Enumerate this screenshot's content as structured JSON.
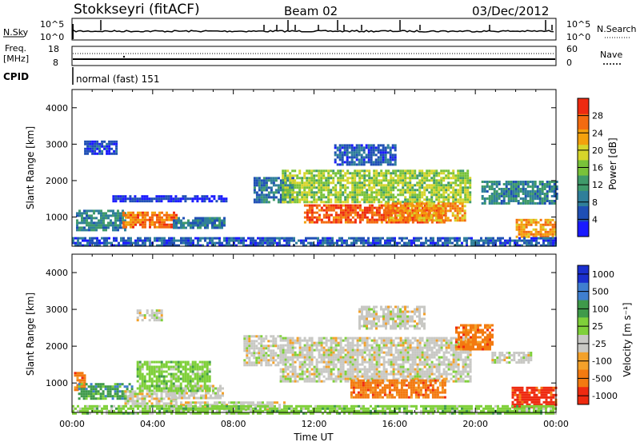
{
  "header": {
    "title": "Stokkseyri (fitACF)",
    "beam": "Beam 02",
    "date": "03/Dec/2012"
  },
  "strip_nsky": {
    "label": "N.Sky",
    "left_ticks": [
      "10^5",
      "10^0"
    ],
    "right_ticks": [
      "10^5",
      "10^0"
    ],
    "right_label": "N.Search"
  },
  "strip_freq": {
    "label_line1": "Freq.",
    "label_line2": "[MHz]",
    "left_ticks": [
      "18",
      "8"
    ],
    "right_ticks": [
      "60",
      "0"
    ],
    "right_label": "Nave"
  },
  "strip_cpid": {
    "label": "CPID",
    "mode": "normal (fast) 151"
  },
  "x_axis": {
    "label": "Time UT",
    "ticks": [
      "00:00",
      "04:00",
      "08:00",
      "12:00",
      "16:00",
      "20:00",
      "00:00"
    ]
  },
  "colors": {
    "power": [
      "#1a1aff",
      "#1f4fb5",
      "#2f7f9a",
      "#3f9a6a",
      "#79c23a",
      "#d6d52b",
      "#f3a10d",
      "#f36b10",
      "#ee2a10"
    ],
    "velocity": [
      "#1a2fcf",
      "#3f7fd0",
      "#3f9a4a",
      "#7fd03a",
      "#c8c8c4",
      "#f3a12a",
      "#f37a10",
      "#ee2a10"
    ]
  },
  "chart_data": [
    {
      "type": "heatmap",
      "name": "power",
      "ylabel": "Slant Range [km]",
      "ylim": [
        200,
        4500
      ],
      "y_ticks": [
        "1000",
        "2000",
        "3000",
        "4000"
      ],
      "xlim_hours": [
        0,
        24
      ],
      "colorbar": {
        "label": "Power [dB]",
        "range": [
          0,
          32
        ],
        "ticks": [
          "4",
          "8",
          "12",
          "16",
          "20",
          "24",
          "28"
        ]
      },
      "regions": [
        {
          "t0": 0.2,
          "t1": 2.6,
          "r0": 650,
          "r1": 1200,
          "level": 10
        },
        {
          "t0": 2.5,
          "t1": 5.2,
          "r0": 700,
          "r1": 1150,
          "level": 26
        },
        {
          "t0": 5.0,
          "t1": 7.5,
          "r0": 700,
          "r1": 1000,
          "level": 9
        },
        {
          "t0": 2.0,
          "t1": 7.7,
          "r0": 1450,
          "r1": 1600,
          "level": 3
        },
        {
          "t0": 0.6,
          "t1": 2.2,
          "r0": 2750,
          "r1": 3100,
          "level": 5
        },
        {
          "t0": 9.0,
          "t1": 11.0,
          "r0": 1400,
          "r1": 2100,
          "level": 8
        },
        {
          "t0": 10.4,
          "t1": 19.8,
          "r0": 1400,
          "r1": 2300,
          "level": 17
        },
        {
          "t0": 11.5,
          "t1": 18.5,
          "r0": 850,
          "r1": 1350,
          "level": 28
        },
        {
          "t0": 15.5,
          "t1": 19.5,
          "r0": 900,
          "r1": 1400,
          "level": 24
        },
        {
          "t0": 13.0,
          "t1": 16.0,
          "r0": 2450,
          "r1": 3000,
          "level": 6
        },
        {
          "t0": 20.3,
          "t1": 24.0,
          "r0": 1350,
          "r1": 2000,
          "level": 10
        },
        {
          "t0": 22.0,
          "t1": 24.0,
          "r0": 450,
          "r1": 950,
          "level": 24
        },
        {
          "t0": 0.0,
          "t1": 24.0,
          "r0": 200,
          "r1": 450,
          "level": 6
        }
      ]
    },
    {
      "type": "heatmap",
      "name": "velocity",
      "ylabel": "Slant Range [km]",
      "ylim": [
        200,
        4500
      ],
      "y_ticks": [
        "1000",
        "2000",
        "3000",
        "4000"
      ],
      "xlim_hours": [
        0,
        24
      ],
      "colorbar": {
        "label": "Velocity [m s⁻¹]",
        "ticks": [
          "1000",
          "500",
          "100",
          "25",
          "-25",
          "-100",
          "-500",
          "-1000"
        ]
      },
      "regions": [
        {
          "t0": 0.1,
          "t1": 0.6,
          "r0": 800,
          "r1": 1300,
          "class": 6
        },
        {
          "t0": 0.3,
          "t1": 3.0,
          "r0": 600,
          "r1": 1000,
          "class": 2
        },
        {
          "t0": 2.6,
          "t1": 5.2,
          "r0": 400,
          "r1": 800,
          "class": 4
        },
        {
          "t0": 4.8,
          "t1": 7.5,
          "r0": 600,
          "r1": 950,
          "class": 4
        },
        {
          "t0": 3.2,
          "t1": 6.8,
          "r0": 800,
          "r1": 1600,
          "class": 3
        },
        {
          "t0": 3.2,
          "t1": 4.4,
          "r0": 2700,
          "r1": 3000,
          "class": 4
        },
        {
          "t0": 5.0,
          "t1": 10.5,
          "r0": 250,
          "r1": 500,
          "class": 4
        },
        {
          "t0": 8.5,
          "t1": 10.4,
          "r0": 1500,
          "r1": 2300,
          "class": 4
        },
        {
          "t0": 10.3,
          "t1": 19.8,
          "r0": 1050,
          "r1": 2250,
          "class": 4
        },
        {
          "t0": 13.8,
          "t1": 18.5,
          "r0": 600,
          "r1": 1100,
          "class": 6
        },
        {
          "t0": 14.2,
          "t1": 17.5,
          "r0": 2500,
          "r1": 3100,
          "class": 4
        },
        {
          "t0": 19.0,
          "t1": 20.8,
          "r0": 1900,
          "r1": 2600,
          "class": 6
        },
        {
          "t0": 20.8,
          "t1": 22.8,
          "r0": 1550,
          "r1": 1850,
          "class": 4
        },
        {
          "t0": 21.8,
          "t1": 24.0,
          "r0": 350,
          "r1": 900,
          "class": 7
        },
        {
          "t0": 0.0,
          "t1": 24.0,
          "r0": 200,
          "r1": 400,
          "class": 3
        }
      ]
    }
  ]
}
